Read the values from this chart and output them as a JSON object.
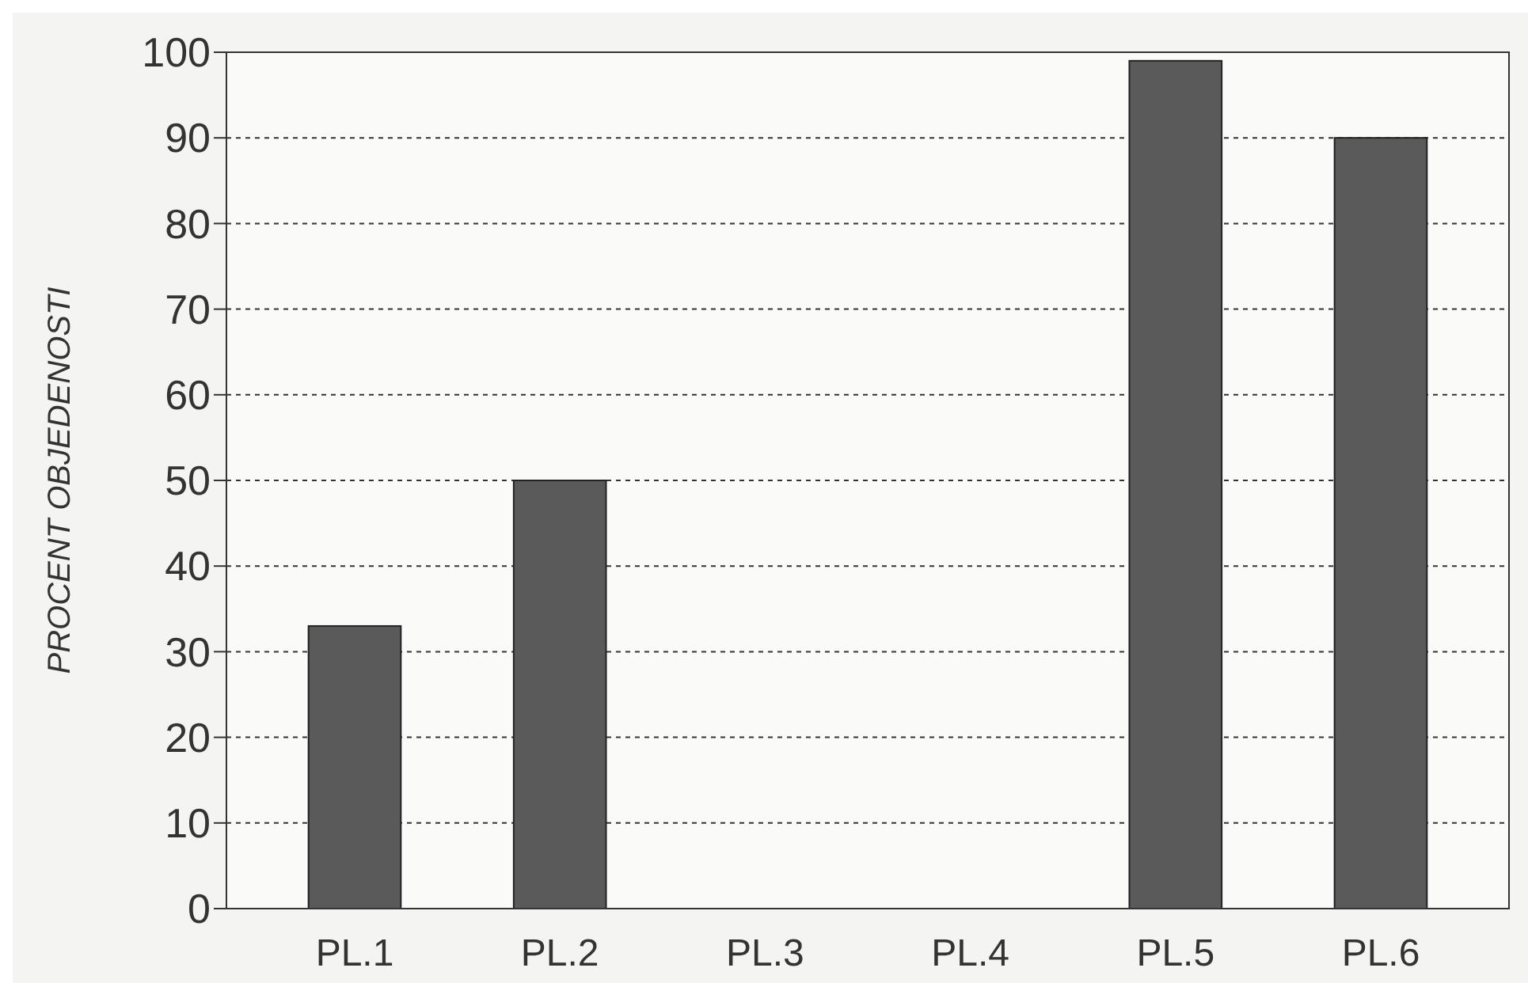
{
  "chart_data": {
    "type": "bar",
    "ylabel": "PROCENT OBJEDENOSTI",
    "categories": [
      "PL.1",
      "PL.2",
      "PL.3",
      "PL.4",
      "PL.5",
      "PL.6"
    ],
    "values": [
      33,
      50,
      0,
      0,
      99,
      90
    ],
    "color": "#5a5a5a",
    "ylim": [
      0,
      100
    ],
    "yticks": [
      0,
      10,
      20,
      30,
      40,
      50,
      60,
      70,
      80,
      90,
      100
    ],
    "grid": "y"
  }
}
